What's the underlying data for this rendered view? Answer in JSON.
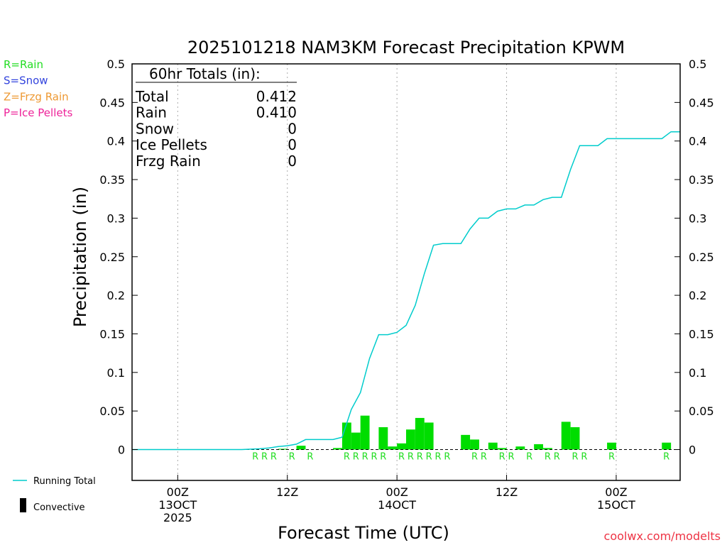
{
  "chart_data": {
    "type": "bar",
    "title": "2025101218 NAM3KM Forecast Precipitation KPWM",
    "xlabel": "Forecast Time (UTC)",
    "ylabel": "Precipitation (in)",
    "ylim": [
      -0.04,
      0.5
    ],
    "xlim": [
      -5,
      55
    ],
    "y_ticks": [
      0,
      0.05,
      0.1,
      0.15,
      0.2,
      0.25,
      0.3,
      0.35,
      0.4,
      0.45,
      0.5
    ],
    "y_tick_labels": [
      "0",
      "0.05",
      "0.1",
      "0.15",
      "0.2",
      "0.25",
      "0.3",
      "0.35",
      "0.4",
      "0.45",
      "0.5"
    ],
    "x_ticks": [
      {
        "x": 0,
        "lines": [
          "00Z",
          "13OCT",
          "2025"
        ]
      },
      {
        "x": 12,
        "lines": [
          "12Z"
        ]
      },
      {
        "x": 24,
        "lines": [
          "00Z",
          "14OCT"
        ]
      },
      {
        "x": 36,
        "lines": [
          "12Z"
        ]
      },
      {
        "x": 48,
        "lines": [
          "00Z",
          "15OCT"
        ]
      }
    ],
    "legend": [
      {
        "label": "R=Rain",
        "color": "#22dd22"
      },
      {
        "label": "S=Snow",
        "color": "#3344dd"
      },
      {
        "label": "Z=Frzg Rain",
        "color": "#ee9933"
      },
      {
        "label": "P=Ice Pellets",
        "color": "#ee2299"
      }
    ],
    "bottom_legend": {
      "running_total": "Running Total",
      "convective": "Convective"
    },
    "totals": {
      "header": "60hr Totals (in):",
      "rows": [
        {
          "label": "Total",
          "value": "0.412"
        },
        {
          "label": "Rain",
          "value": "0.410"
        },
        {
          "label": "Snow",
          "value": "0"
        },
        {
          "label": "Ice Pellets",
          "value": "0"
        },
        {
          "label": "Frzg Rain",
          "value": "0"
        }
      ]
    },
    "series": [
      {
        "name": "Hourly Precipitation",
        "color": "#00dd00",
        "x": [
          12,
          14,
          18,
          19,
          20,
          21,
          23,
          24,
          25,
          26,
          27,
          28,
          32,
          33,
          35,
          36,
          38,
          40,
          41,
          43,
          44,
          48,
          54
        ],
        "values": [
          0.001,
          0.005,
          0.002,
          0.035,
          0.022,
          0.044,
          0.029,
          0.004,
          0.008,
          0.026,
          0.041,
          0.035,
          0.019,
          0.013,
          0.009,
          0.002,
          0.004,
          0.007,
          0.002,
          0.036,
          0.029,
          0.009,
          0.009
        ]
      },
      {
        "name": "Running Total",
        "color": "#00cccc",
        "x": [
          -5,
          0,
          2,
          3,
          6,
          7,
          9,
          10,
          11,
          12,
          13,
          14,
          15,
          16,
          17,
          18,
          19,
          20,
          21,
          22,
          23,
          24,
          25,
          26,
          27,
          28,
          29,
          30,
          31,
          32,
          33,
          34,
          35,
          36,
          37,
          38,
          39,
          40,
          41,
          42,
          43,
          44,
          45,
          46,
          47,
          48,
          49,
          50,
          51,
          52,
          53,
          54,
          55
        ],
        "values": [
          0,
          0,
          0,
          0,
          0,
          0,
          0.001,
          0.002,
          0.004,
          0.005,
          0.007,
          0.013,
          0.013,
          0.013,
          0.013,
          0.016,
          0.052,
          0.074,
          0.118,
          0.149,
          0.149,
          0.152,
          0.161,
          0.187,
          0.228,
          0.265,
          0.267,
          0.267,
          0.267,
          0.286,
          0.3,
          0.3,
          0.309,
          0.312,
          0.312,
          0.317,
          0.317,
          0.324,
          0.327,
          0.327,
          0.363,
          0.394,
          0.394,
          0.394,
          0.403,
          0.403,
          0.403,
          0.403,
          0.403,
          0.403,
          0.403,
          0.412,
          0.412
        ]
      }
    ],
    "type_letters": {
      "label": "R",
      "color": "#22dd22",
      "x": [
        9,
        10,
        11,
        13,
        15,
        19,
        20,
        21,
        22,
        23,
        25,
        26,
        27,
        28,
        29,
        30,
        33,
        34,
        36,
        37,
        39,
        41,
        42,
        44,
        45,
        48,
        54
      ]
    },
    "footer": "coolwx.com/modelts"
  }
}
